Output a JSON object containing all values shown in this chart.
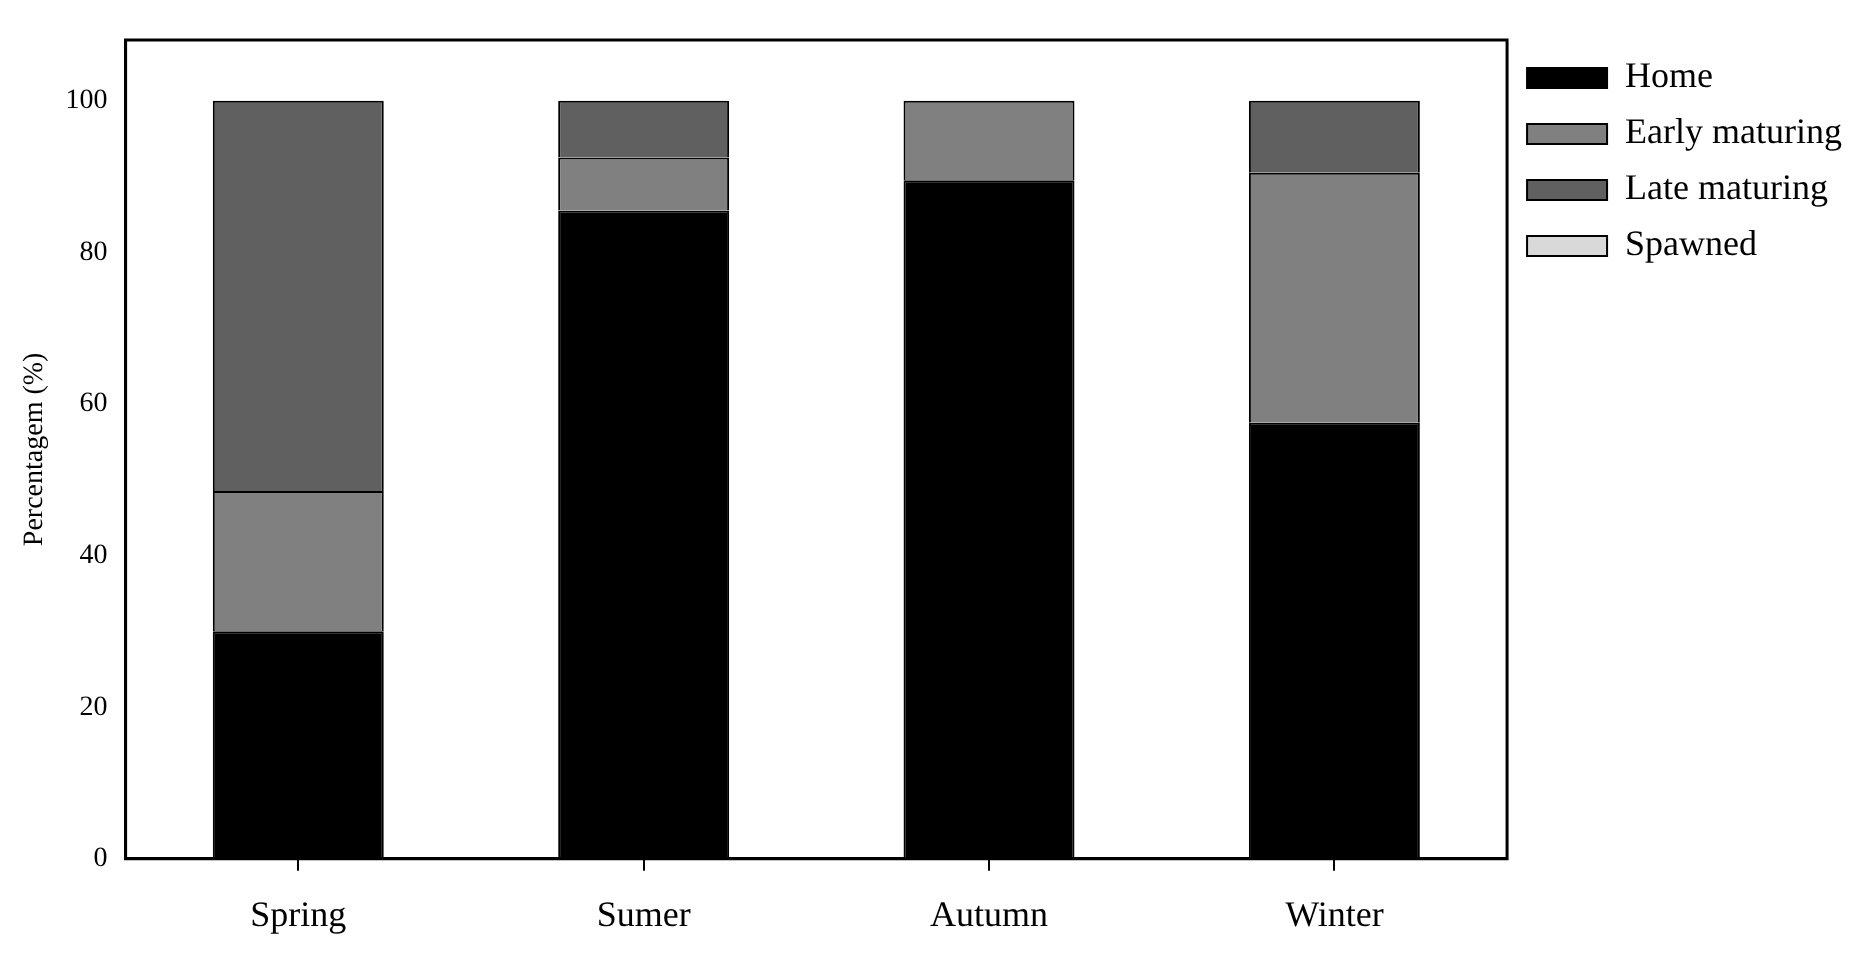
{
  "chart_data": {
    "type": "bar",
    "stacked": true,
    "ylabel": "Percentagem (%)",
    "categories": [
      "Spring",
      "Sumer",
      "Autumn",
      "Winter"
    ],
    "series": [
      {
        "name": "Home",
        "color": "#000000",
        "values": [
          30,
          85.5,
          89.5,
          57.5
        ]
      },
      {
        "name": "Early maturing",
        "color": "#808080",
        "values": [
          18.5,
          7,
          10.5,
          33
        ]
      },
      {
        "name": "Late maturing",
        "color": "#606060",
        "values": [
          51.5,
          7.5,
          0,
          9.5
        ]
      },
      {
        "name": "Spawned",
        "color": "#d9d9d9",
        "values": [
          0,
          0,
          0,
          0
        ]
      }
    ],
    "ylim": [
      0,
      108
    ],
    "yticks": [
      0,
      20,
      40,
      60,
      80,
      100
    ],
    "grid": false,
    "legend": "top right"
  }
}
